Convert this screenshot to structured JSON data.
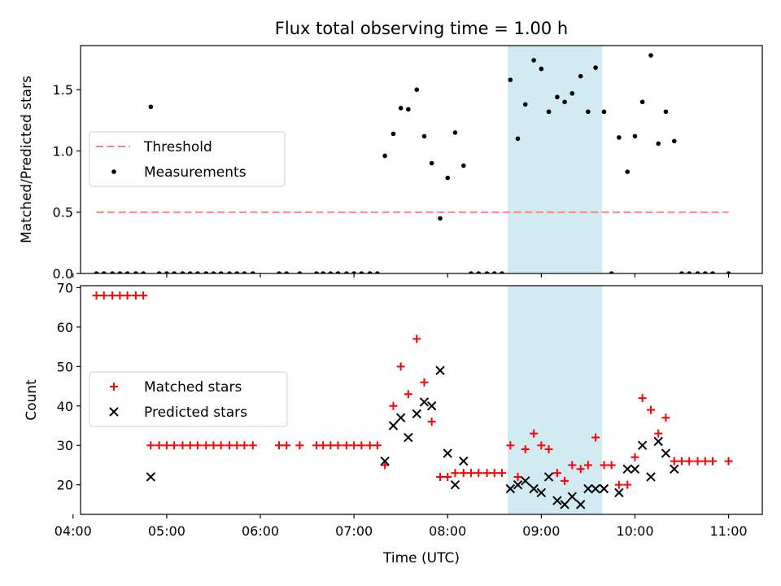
{
  "chart_data": {
    "title": "Flux total observing time = 1.00 h",
    "xlabel": "Time (UTC)",
    "xlim": [
      4.08,
      11.36
    ],
    "x_ticks": [
      4,
      5,
      6,
      7,
      8,
      9,
      10,
      11
    ],
    "x_tick_labels": [
      "04:00",
      "05:00",
      "06:00",
      "07:00",
      "08:00",
      "09:00",
      "10:00",
      "11:00"
    ],
    "highlight_span": [
      8.64,
      9.65
    ],
    "colors": {
      "threshold": "#ff7f7f",
      "measurement": "#000000",
      "matched": "#ff0000",
      "predicted": "#000000",
      "span": "#add8e6"
    },
    "panels": [
      {
        "type": "scatter",
        "ylabel": "Matched/Predicted stars",
        "ylim": [
          0,
          1.86
        ],
        "y_ticks": [
          0,
          0.5,
          1.0,
          1.5
        ],
        "y_tick_labels": [
          "0.0",
          "0.5",
          "1.0",
          "1.5"
        ],
        "legend": {
          "position": "center-left",
          "entries": [
            {
              "label": "Threshold",
              "marker": "dashed-line"
            },
            {
              "label": "Measurements",
              "marker": "dot"
            }
          ]
        },
        "threshold": {
          "value": 0.5,
          "x_range": [
            4.25,
            11.0
          ]
        },
        "measurements": {
          "x": [
            4.25,
            4.33,
            4.42,
            4.5,
            4.58,
            4.67,
            4.75,
            4.83,
            4.92,
            5.0,
            5.08,
            5.17,
            5.25,
            5.33,
            5.42,
            5.5,
            5.58,
            5.67,
            5.75,
            5.83,
            5.92,
            6.2,
            6.28,
            6.42,
            6.6,
            6.67,
            6.75,
            6.83,
            6.92,
            7.0,
            7.08,
            7.17,
            7.25,
            7.33,
            7.42,
            7.5,
            7.58,
            7.67,
            7.75,
            7.83,
            7.92,
            8.0,
            8.08,
            8.17,
            8.25,
            8.33,
            8.42,
            8.5,
            8.58,
            8.67,
            8.75,
            8.83,
            8.92,
            9.0,
            9.08,
            9.17,
            9.25,
            9.33,
            9.42,
            9.5,
            9.58,
            9.67,
            9.75,
            9.83,
            9.92,
            10.0,
            10.08,
            10.17,
            10.25,
            10.33,
            10.42,
            10.5,
            10.58,
            10.67,
            10.75,
            10.83,
            11.0
          ],
          "y": [
            0,
            0,
            0,
            0,
            0,
            0,
            0,
            1.36,
            0,
            0,
            0,
            0,
            0,
            0,
            0,
            0,
            0,
            0,
            0,
            0,
            0,
            0,
            0,
            0,
            0,
            0,
            0,
            0,
            0,
            0,
            0,
            0,
            0,
            0.96,
            1.14,
            1.35,
            1.34,
            1.5,
            1.12,
            0.9,
            0.45,
            0.78,
            1.15,
            0.88,
            0,
            0,
            0,
            0,
            0,
            1.58,
            1.1,
            1.38,
            1.74,
            1.67,
            1.32,
            1.44,
            1.4,
            1.47,
            1.61,
            1.32,
            1.68,
            1.32,
            0,
            1.11,
            0.83,
            1.12,
            1.4,
            1.78,
            1.06,
            1.32,
            1.08,
            0,
            0,
            0,
            0,
            0,
            0
          ]
        }
      },
      {
        "type": "scatter",
        "ylabel": "Count",
        "ylim": [
          12.5,
          70.5
        ],
        "y_ticks": [
          20,
          30,
          40,
          50,
          60,
          70
        ],
        "y_tick_labels": [
          "20",
          "30",
          "40",
          "50",
          "60",
          "70"
        ],
        "legend": {
          "position": "center-left",
          "entries": [
            {
              "label": "Matched stars",
              "marker": "plus"
            },
            {
              "label": "Predicted stars",
              "marker": "x"
            }
          ]
        },
        "matched_stars": {
          "x": [
            4.25,
            4.33,
            4.42,
            4.5,
            4.58,
            4.67,
            4.75,
            4.83,
            4.92,
            5.0,
            5.08,
            5.17,
            5.25,
            5.33,
            5.42,
            5.5,
            5.58,
            5.67,
            5.75,
            5.83,
            5.92,
            6.2,
            6.28,
            6.42,
            6.6,
            6.67,
            6.75,
            6.83,
            6.92,
            7.0,
            7.08,
            7.17,
            7.25,
            7.33,
            7.42,
            7.5,
            7.58,
            7.67,
            7.75,
            7.83,
            7.92,
            8.0,
            8.08,
            8.17,
            8.25,
            8.33,
            8.42,
            8.5,
            8.58,
            8.67,
            8.75,
            8.83,
            8.92,
            9.0,
            9.08,
            9.17,
            9.25,
            9.33,
            9.42,
            9.5,
            9.58,
            9.67,
            9.75,
            9.83,
            9.92,
            10.0,
            10.08,
            10.17,
            10.25,
            10.33,
            10.42,
            10.5,
            10.58,
            10.67,
            10.75,
            10.83,
            11.0
          ],
          "y": [
            68,
            68,
            68,
            68,
            68,
            68,
            68,
            30,
            30,
            30,
            30,
            30,
            30,
            30,
            30,
            30,
            30,
            30,
            30,
            30,
            30,
            30,
            30,
            30,
            30,
            30,
            30,
            30,
            30,
            30,
            30,
            30,
            30,
            25,
            40,
            50,
            43,
            57,
            46,
            36,
            22,
            22,
            23,
            23,
            23,
            23,
            23,
            23,
            23,
            30,
            22,
            29,
            33,
            30,
            29,
            23,
            21,
            25,
            24,
            25,
            32,
            25,
            25,
            20,
            20,
            27,
            42,
            39,
            33,
            37,
            26,
            26,
            26,
            26,
            26,
            26,
            26
          ]
        },
        "predicted_stars": {
          "x": [
            4.83,
            7.33,
            7.42,
            7.5,
            7.58,
            7.67,
            7.75,
            7.83,
            7.92,
            8.0,
            8.08,
            8.17,
            8.67,
            8.75,
            8.83,
            8.92,
            9.0,
            9.08,
            9.17,
            9.25,
            9.33,
            9.42,
            9.5,
            9.58,
            9.67,
            9.83,
            9.92,
            10.0,
            10.08,
            10.17,
            10.25,
            10.33,
            10.42
          ],
          "y": [
            22,
            26,
            35,
            37,
            32,
            38,
            41,
            40,
            49,
            28,
            20,
            26,
            19,
            20,
            21,
            19,
            18,
            22,
            16,
            15,
            17,
            15,
            19,
            19,
            19,
            18,
            24,
            24,
            30,
            22,
            31,
            28,
            24
          ]
        }
      }
    ]
  }
}
